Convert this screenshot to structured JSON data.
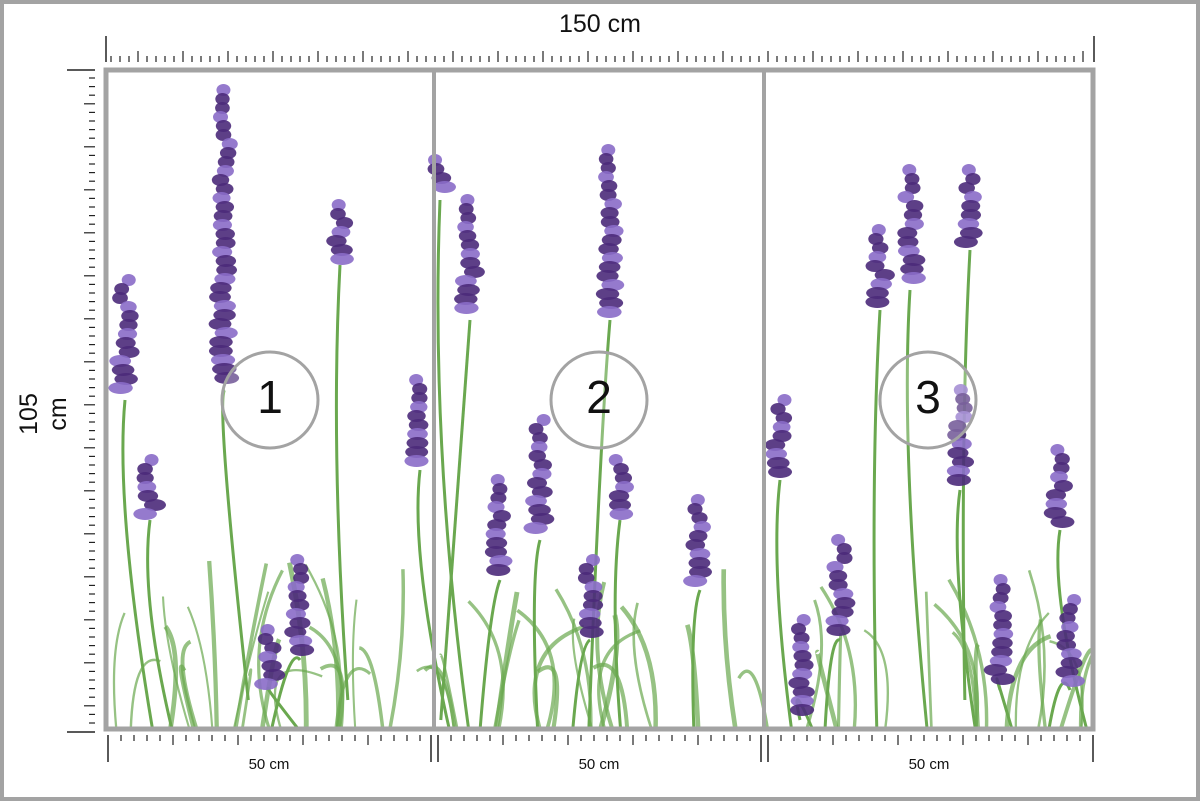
{
  "dimensions": {
    "width_label": "150 cm",
    "height_label": "105 cm"
  },
  "segments": [
    {
      "label": "50 cm",
      "panel": "1"
    },
    {
      "label": "50 cm",
      "panel": "2"
    },
    {
      "label": "50 cm",
      "panel": "3"
    }
  ],
  "colors": {
    "frame": "#a3a3a3",
    "lavender_dark": "#4b2a7a",
    "lavender_light": "#8a6cc8",
    "stem": "#6aa84f"
  },
  "image_subject": "lavender flowers"
}
